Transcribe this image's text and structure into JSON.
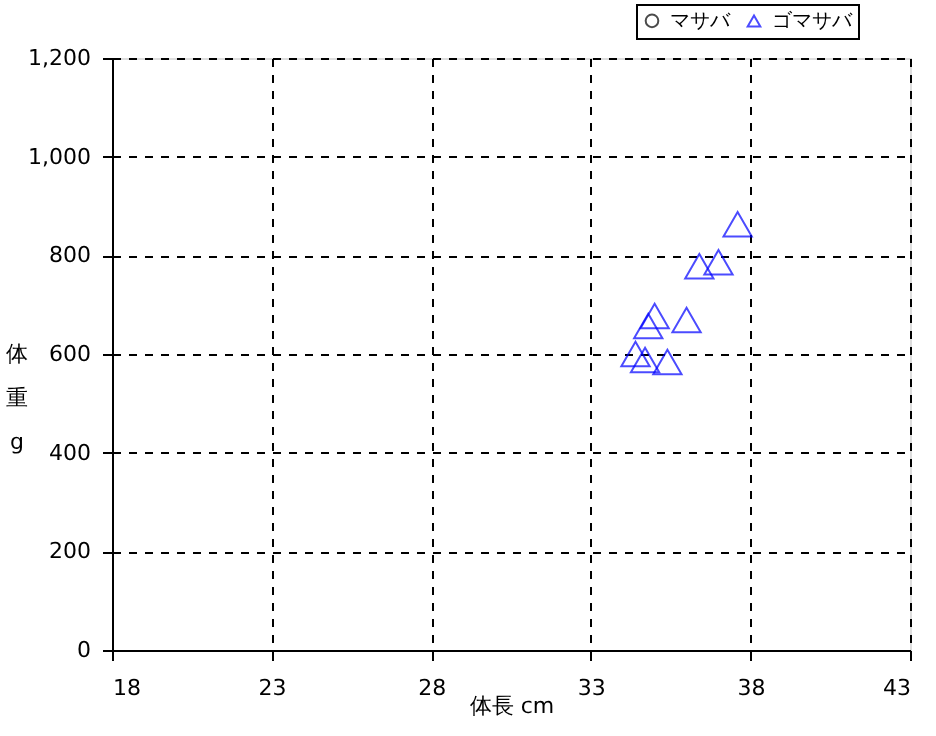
{
  "chart_data": {
    "type": "scatter",
    "xlabel": "体長 cm",
    "ylabel": "体重 g",
    "xlim": [
      18,
      43
    ],
    "xticks": [
      18,
      23,
      28,
      33,
      38,
      43
    ],
    "ylim": [
      0,
      1200
    ],
    "yticks": [
      0,
      200,
      400,
      600,
      800,
      {
        "value": 1000,
        "label": "1,000"
      },
      {
        "value": 1200,
        "label": "1,200"
      }
    ],
    "grid": true,
    "legend": "top right",
    "series": [
      {
        "name": "マサバ",
        "color": "#000000",
        "marker": "circle"
      },
      {
        "name": "ゴマサバ",
        "color": "#0000ff",
        "marker": "triangle",
        "x": [
          37.6,
          36.4,
          37.0,
          35.0,
          34.8,
          36.0,
          34.4,
          34.7,
          35.4
        ],
        "values": [
          863,
          778,
          786,
          677,
          657,
          669,
          600,
          588,
          584
        ]
      }
    ]
  }
}
